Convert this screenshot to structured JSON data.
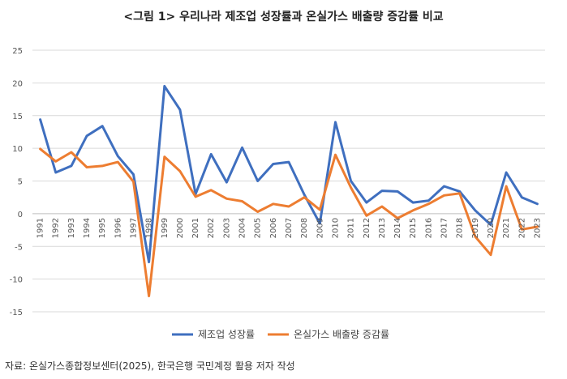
{
  "title": "<그림 1> 우리나라 제조업 성장률과 온실가스 배출량 증감률 비교",
  "source": "자료: 온실가스종합정보센터(2025), 한국은행 국민계정 활용 저자 작성",
  "chart_data": {
    "type": "line",
    "title": "<그림 1> 우리나라 제조업 성장률과 온실가스 배출량 증감률 비교",
    "xlabel": "",
    "ylabel": "",
    "categories": [
      "1991",
      "1992",
      "1993",
      "1994",
      "1995",
      "1996",
      "1997",
      "1998",
      "1999",
      "2000",
      "2001",
      "2002",
      "2003",
      "2004",
      "2005",
      "2006",
      "2007",
      "2008",
      "2009",
      "2010",
      "2011",
      "2012",
      "2013",
      "2014",
      "2015",
      "2016",
      "2017",
      "2018",
      "2019",
      "2020",
      "2021",
      "2022",
      "2023"
    ],
    "ylim": [
      -15,
      25
    ],
    "yticks": [
      25,
      20,
      15,
      10,
      5,
      0,
      -5,
      -10,
      -15
    ],
    "grid": true,
    "legend": "bottom",
    "series": [
      {
        "name": "제조업 성장률",
        "color": "#3f6fbf",
        "values": [
          14.4,
          6.3,
          7.3,
          11.9,
          13.4,
          8.8,
          6.0,
          -7.4,
          19.5,
          15.9,
          3.0,
          9.1,
          4.8,
          10.1,
          5.0,
          7.6,
          7.9,
          2.9,
          -1.5,
          14.0,
          5.0,
          1.7,
          3.5,
          3.4,
          1.7,
          2.0,
          4.2,
          3.4,
          0.5,
          -1.7,
          6.3,
          2.5,
          1.5
        ]
      },
      {
        "name": "온실가스 배출량 증감률",
        "color": "#ed7d31",
        "values": [
          9.9,
          8.0,
          9.4,
          7.1,
          7.3,
          7.9,
          4.9,
          -12.6,
          8.7,
          6.5,
          2.6,
          3.6,
          2.3,
          1.9,
          0.3,
          1.5,
          1.1,
          2.5,
          0.6,
          9.0,
          4.0,
          -0.3,
          1.1,
          -0.7,
          0.5,
          1.5,
          2.8,
          3.1,
          -3.5,
          -6.3,
          4.2,
          -2.4,
          -2.0
        ]
      }
    ]
  }
}
